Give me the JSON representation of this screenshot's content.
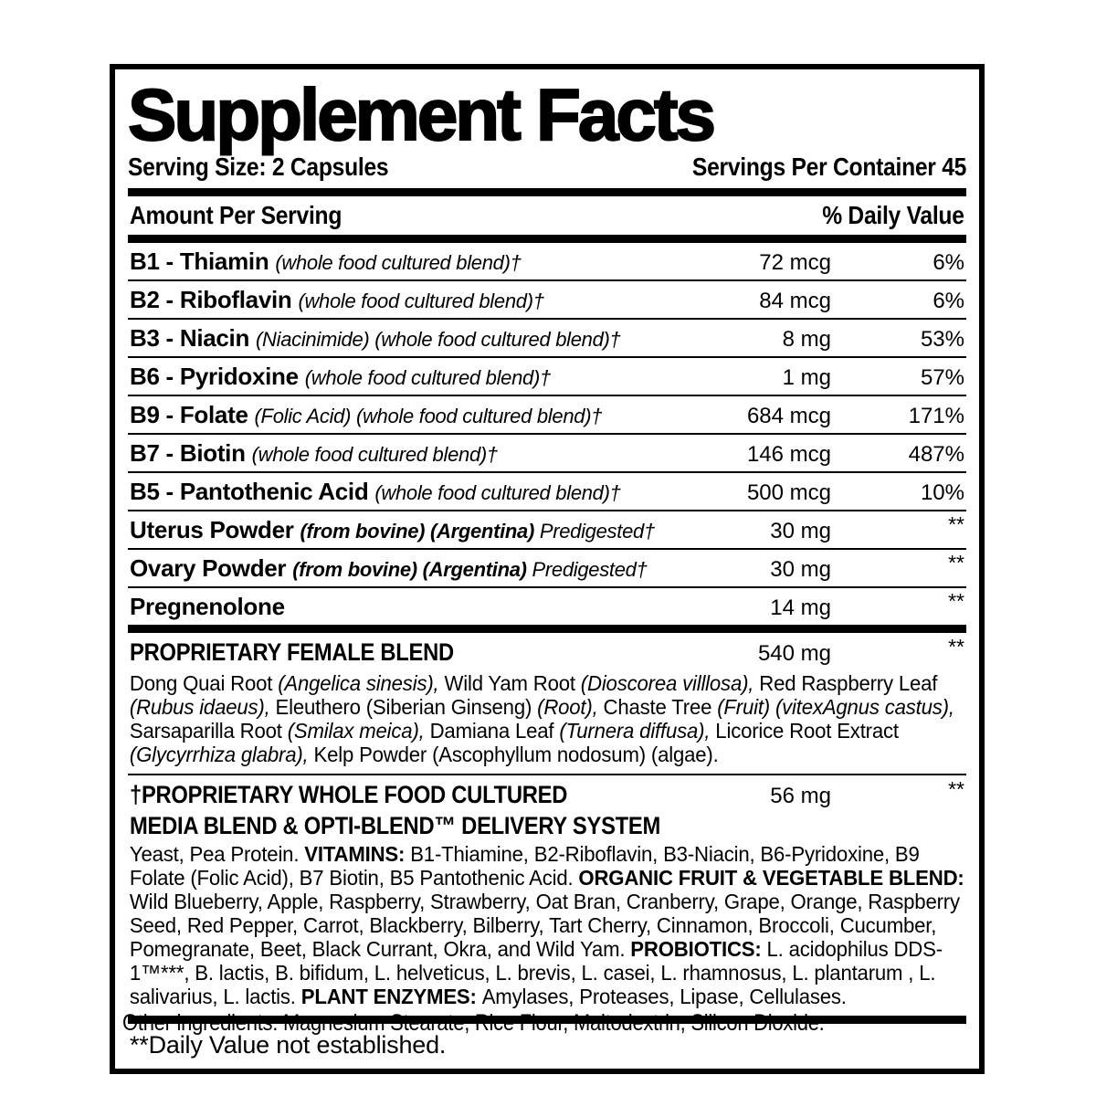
{
  "colors": {
    "text": "#000000",
    "background": "#ffffff"
  },
  "label": {
    "title": "Supplement Facts",
    "serving_size": "Serving Size: 2 Capsules",
    "servings_per_container": "Servings Per Container 45",
    "col_amount": "Amount Per Serving",
    "col_daily_value": "% Daily Value",
    "rows": [
      {
        "name": [
          {
            "t": "B1 - Thiamin ",
            "c": "nm"
          },
          {
            "t": "(whole food cultured blend)†",
            "c": "q"
          }
        ],
        "amount": "72 mcg",
        "dv": "6%"
      },
      {
        "name": [
          {
            "t": "B2 - Riboflavin ",
            "c": "nm"
          },
          {
            "t": "(whole food cultured blend)†",
            "c": "q"
          }
        ],
        "amount": "84 mcg",
        "dv": "6%"
      },
      {
        "name": [
          {
            "t": "B3 - Niacin ",
            "c": "nm"
          },
          {
            "t": "(Niacinimide) (whole food cultured blend)†",
            "c": "q"
          }
        ],
        "amount": "8 mg",
        "dv": "53%"
      },
      {
        "name": [
          {
            "t": "B6 - Pyridoxine ",
            "c": "nm"
          },
          {
            "t": "(whole food cultured blend)†",
            "c": "q"
          }
        ],
        "amount": "1 mg",
        "dv": "57%"
      },
      {
        "name": [
          {
            "t": "B9 - Folate ",
            "c": "nm"
          },
          {
            "t": "(Folic Acid) (whole food cultured blend)†",
            "c": "q"
          }
        ],
        "amount": "684 mcg",
        "dv": "171%"
      },
      {
        "name": [
          {
            "t": "B7 - Biotin ",
            "c": "nm"
          },
          {
            "t": "(whole food cultured blend)†",
            "c": "q"
          }
        ],
        "amount": "146 mcg",
        "dv": "487%"
      },
      {
        "name": [
          {
            "t": "B5 - Pantothenic Acid ",
            "c": "nm"
          },
          {
            "t": "(whole food cultured blend)†",
            "c": "q"
          }
        ],
        "amount": "500 mcg",
        "dv": "10%"
      },
      {
        "name": [
          {
            "t": "Uterus Powder ",
            "c": "nm"
          },
          {
            "t": "(from bovine) (Argentina) ",
            "c": "qb"
          },
          {
            "t": "Predigested†",
            "c": "q"
          }
        ],
        "amount": "30 mg",
        "dv": "**"
      },
      {
        "name": [
          {
            "t": "Ovary Powder ",
            "c": "nm"
          },
          {
            "t": "(from bovine) (Argentina) ",
            "c": "qb"
          },
          {
            "t": "Predigested†",
            "c": "q"
          }
        ],
        "amount": "30 mg",
        "dv": "**"
      },
      {
        "name": [
          {
            "t": "Pregnenolone",
            "c": "nm"
          }
        ],
        "amount": "14 mg",
        "dv": "**"
      }
    ],
    "blends": [
      {
        "heading": "PROPRIETARY FEMALE BLEND",
        "amount": "540 mg",
        "dv": "**",
        "body": [
          {
            "t": "Dong Quai Root "
          },
          {
            "t": "(Angelica sinesis),",
            "c": "i"
          },
          {
            "t": " Wild Yam Root "
          },
          {
            "t": "(Dioscorea villlosa),",
            "c": "i"
          },
          {
            "t": " Red Raspberry Leaf "
          },
          {
            "t": "(Rubus idaeus),",
            "c": "i"
          },
          {
            "t": " Eleuthero (Siberian Ginseng) "
          },
          {
            "t": "(Root),",
            "c": "i"
          },
          {
            "t": " Chaste Tree "
          },
          {
            "t": "(Fruit) (vitexAgnus castus),",
            "c": "i"
          },
          {
            "t": " Sarsaparilla Root "
          },
          {
            "t": "(Smilax meica),",
            "c": "i"
          },
          {
            "t": " Damiana Leaf "
          },
          {
            "t": "(Turnera diffusa),",
            "c": "i"
          },
          {
            "t": " Licorice Root Extract "
          },
          {
            "t": "(Glycyrrhiza glabra),",
            "c": "i"
          },
          {
            "t": " Kelp Powder (Ascophyllum nodosum) (algae)."
          }
        ]
      },
      {
        "heading_line1": "†PROPRIETARY WHOLE FOOD CULTURED",
        "heading_line2": "MEDIA BLEND & OPTI-BLEND™ DELIVERY SYSTEM",
        "amount": "56 mg",
        "dv": "**",
        "body": [
          {
            "t": "Yeast, Pea Protein. "
          },
          {
            "t": "VITAMINS: ",
            "c": "b"
          },
          {
            "t": "B1-Thiamine, B2-Riboflavin, B3-Niacin, B6-Pyridoxine, B9 Folate (Folic Acid), B7 Biotin, B5 Pantothenic Acid. "
          },
          {
            "t": "ORGANIC FRUIT & VEGETABLE BLEND: ",
            "c": "b"
          },
          {
            "t": "Wild Blueberry, Apple, Raspberry, Strawberry, Oat Bran, Cranberry, Grape, Orange, Raspberry Seed, Red Pepper, Carrot, Blackberry, Bilberry, Tart Cherry, Cinnamon, Broccoli, Cucumber, Pomegranate, Beet, Black Currant, Okra, and Wild Yam. "
          },
          {
            "t": "PROBIOTICS:  ",
            "c": "b"
          },
          {
            "t": "L. acidophilus DDS-1™***, B. lactis, B. bifidum, L. helveticus, L. brevis, L. casei, L. rhamnosus, L. plantarum , L. salivarius, L. lactis. "
          },
          {
            "t": "PLANT ENZYMES: ",
            "c": "b"
          },
          {
            "t": "Amylases, Proteases, Lipase, Cellulases."
          }
        ]
      }
    ],
    "footnote": "**Daily Value not established."
  },
  "other_ingredients": "Other ingredients: Magnesium Stearate, Rice Flour, Maltodextrin, Silicon Dioxide."
}
